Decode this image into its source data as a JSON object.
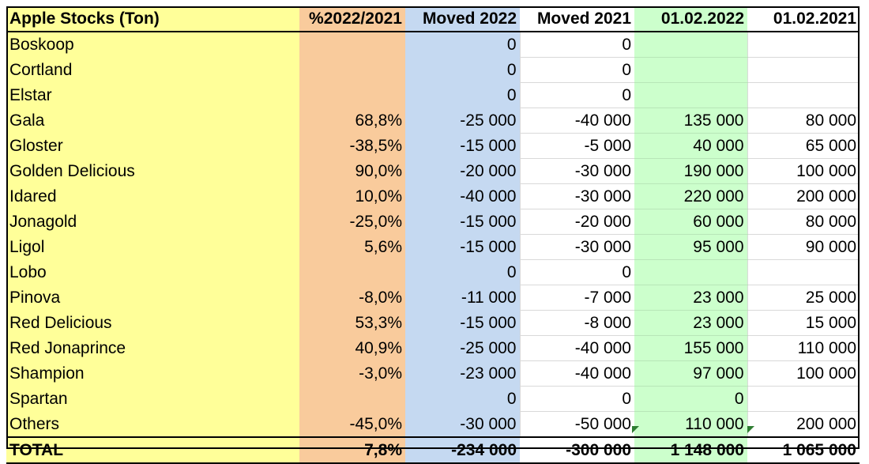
{
  "headers": {
    "name": "Apple Stocks (Ton)",
    "pct": "%2022/2021",
    "moved2022": "Moved 2022",
    "moved2021": "Moved 2021",
    "d2022": "01.02.2022",
    "d2021": "01.02.2021"
  },
  "rows": [
    {
      "name": "Boskoop",
      "pct": "",
      "moved2022": "0",
      "moved2021": "0",
      "d2022": "",
      "d2021": ""
    },
    {
      "name": "Cortland",
      "pct": "",
      "moved2022": "0",
      "moved2021": "0",
      "d2022": "",
      "d2021": ""
    },
    {
      "name": "Elstar",
      "pct": "",
      "moved2022": "0",
      "moved2021": "0",
      "d2022": "",
      "d2021": ""
    },
    {
      "name": "Gala",
      "pct": "68,8%",
      "moved2022": "-25 000",
      "moved2021": "-40 000",
      "d2022": "135 000",
      "d2021": "80 000"
    },
    {
      "name": "Gloster",
      "pct": "-38,5%",
      "moved2022": "-15 000",
      "moved2021": "-5 000",
      "d2022": "40 000",
      "d2021": "65 000"
    },
    {
      "name": "Golden Delicious",
      "pct": "90,0%",
      "moved2022": "-20 000",
      "moved2021": "-30 000",
      "d2022": "190 000",
      "d2021": "100 000"
    },
    {
      "name": "Idared",
      "pct": "10,0%",
      "moved2022": "-40 000",
      "moved2021": "-30 000",
      "d2022": "220 000",
      "d2021": "200 000"
    },
    {
      "name": "Jonagold",
      "pct": "-25,0%",
      "moved2022": "-15 000",
      "moved2021": "-20 000",
      "d2022": "60 000",
      "d2021": "80 000"
    },
    {
      "name": "Ligol",
      "pct": "5,6%",
      "moved2022": "-15 000",
      "moved2021": "-30 000",
      "d2022": "95 000",
      "d2021": "90 000"
    },
    {
      "name": "Lobo",
      "pct": "",
      "moved2022": "0",
      "moved2021": "0",
      "d2022": "",
      "d2021": ""
    },
    {
      "name": "Pinova",
      "pct": "-8,0%",
      "moved2022": "-11 000",
      "moved2021": "-7 000",
      "d2022": "23 000",
      "d2021": "25 000"
    },
    {
      "name": "Red Delicious",
      "pct": "53,3%",
      "moved2022": "-15 000",
      "moved2021": "-8 000",
      "d2022": "23 000",
      "d2021": "15 000"
    },
    {
      "name": "Red Jonaprince",
      "pct": "40,9%",
      "moved2022": "-25 000",
      "moved2021": "-40 000",
      "d2022": "155 000",
      "d2021": "110 000"
    },
    {
      "name": "Shampion",
      "pct": "-3,0%",
      "moved2022": "-23 000",
      "moved2021": "-40 000",
      "d2022": "97 000",
      "d2021": "100 000"
    },
    {
      "name": "Spartan",
      "pct": "",
      "moved2022": "0",
      "moved2021": "0",
      "d2022": "0",
      "d2021": ""
    },
    {
      "name": "Others",
      "pct": "-45,0%",
      "moved2022": "-30 000",
      "moved2021": "-50 000",
      "d2022": "110 000",
      "d2021": "200 000"
    }
  ],
  "total": {
    "name": "TOTAL",
    "pct": "7,8%",
    "moved2022": "-234 000",
    "moved2021": "-300 000",
    "d2022": "1 148 000",
    "d2021": "1 065 000"
  },
  "colors": {
    "name_column": "#ffff99",
    "pct_column": "#f9cb9c",
    "moved2022_column": "#c5d9f1",
    "d2022_column": "#ccffcc",
    "error_marker": "#2e7d32"
  }
}
